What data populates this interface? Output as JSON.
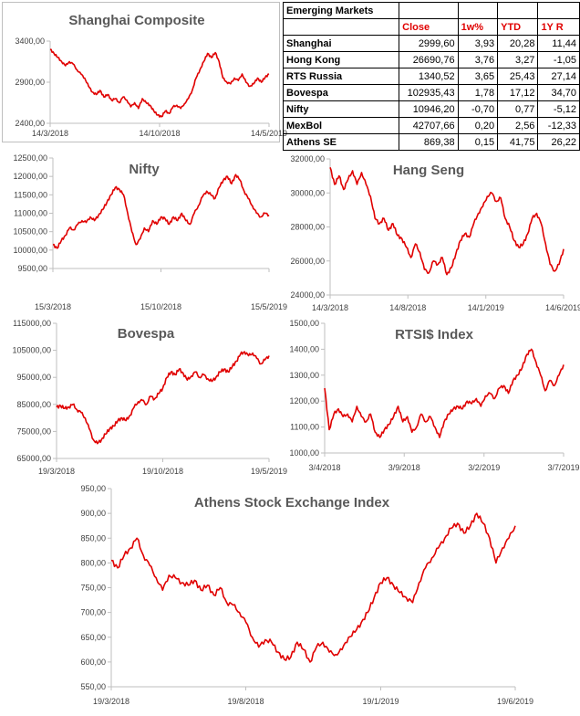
{
  "table": {
    "title": "Emerging Markets",
    "headers": [
      "Close",
      "1w%",
      "YTD",
      "1Y R"
    ],
    "rows": [
      {
        "name": "Shanghai",
        "close": "2999,60",
        "w1": "3,93",
        "ytd": "20,28",
        "y1": "11,44"
      },
      {
        "name": "Hong Kong",
        "close": "26690,76",
        "w1": "3,76",
        "ytd": "3,27",
        "y1": "-1,05"
      },
      {
        "name": "RTS Russia",
        "close": "1340,52",
        "w1": "3,65",
        "ytd": "25,43",
        "y1": "27,14"
      },
      {
        "name": "Bovespa",
        "close": "102935,43",
        "w1": "1,78",
        "ytd": "17,12",
        "y1": "34,70"
      },
      {
        "name": "Nifty",
        "close": "10946,20",
        "w1": "-0,70",
        "ytd": "0,77",
        "y1": "-5,12"
      },
      {
        "name": "MexBol",
        "close": "42707,66",
        "w1": "0,20",
        "ytd": "2,56",
        "y1": "-12,33"
      },
      {
        "name": "Athens SE",
        "close": "869,38",
        "w1": "0,15",
        "ytd": "41,75",
        "y1": "26,22"
      }
    ]
  },
  "colors": {
    "line": "#e00000",
    "axis": "#bfbfbf",
    "text": "#404040",
    "title": "#595959"
  },
  "chart_data": [
    {
      "id": "shanghai",
      "type": "line",
      "title": "Shanghai Composite",
      "ylim": [
        2400,
        3400
      ],
      "yticks": [
        "3400,00",
        "2900,00",
        "2400,00"
      ],
      "ytick_values": [
        3400,
        2900,
        2400
      ],
      "xticks": [
        "14/3/2018",
        "14/10/2018",
        "14/5/2019"
      ],
      "xtick_pos": [
        0.0,
        0.5,
        1.0
      ],
      "series": [
        {
          "values": [
            3300,
            3250,
            3200,
            3150,
            3100,
            3150,
            3120,
            3050,
            3000,
            2950,
            2850,
            2780,
            2750,
            2800,
            2720,
            2750,
            2680,
            2700,
            2650,
            2720,
            2680,
            2600,
            2650,
            2580,
            2700,
            2650,
            2620,
            2550,
            2500,
            2480,
            2550,
            2520,
            2600,
            2620,
            2580,
            2640,
            2700,
            2800,
            2950,
            3050,
            3150,
            3250,
            3200,
            3260,
            3150,
            2950,
            2900,
            2880,
            2950,
            2920,
            3000,
            2900,
            2850,
            2880,
            2950,
            2900,
            2960,
            3000
          ]
        }
      ]
    },
    {
      "id": "nifty",
      "type": "line",
      "title": "Nifty",
      "ylim": [
        9500,
        12500
      ],
      "yticks": [
        "12500,00",
        "12000,00",
        "11500,00",
        "11000,00",
        "10500,00",
        "10000,00",
        "9500,00"
      ],
      "ytick_values": [
        12500,
        12000,
        11500,
        11000,
        10500,
        10000,
        9500
      ],
      "xticks": [
        "15/3/2018",
        "15/10/2018",
        "15/5/2019"
      ],
      "xtick_pos": [
        0.0,
        0.5,
        1.0
      ],
      "series": [
        {
          "values": [
            10150,
            10050,
            10250,
            10400,
            10600,
            10550,
            10700,
            10800,
            10750,
            10900,
            10800,
            10950,
            11100,
            11300,
            11500,
            11700,
            11650,
            11500,
            11000,
            10500,
            10150,
            10300,
            10600,
            10500,
            10800,
            10700,
            10900,
            10850,
            10700,
            10900,
            10800,
            11000,
            10800,
            10700,
            11000,
            11200,
            11450,
            11600,
            11500,
            11400,
            11700,
            11900,
            12000,
            11800,
            12050,
            11900,
            11600,
            11400,
            11200,
            11000,
            10900,
            11000,
            10950
          ]
        }
      ]
    },
    {
      "id": "hangseng",
      "type": "line",
      "title": "Hang Seng",
      "ylim": [
        24000,
        32000
      ],
      "yticks": [
        "32000,00",
        "30000,00",
        "28000,00",
        "26000,00",
        "24000,00"
      ],
      "ytick_values": [
        32000,
        30000,
        28000,
        26000,
        24000
      ],
      "xticks": [
        "14/3/2018",
        "14/8/2018",
        "14/1/2019",
        "14/6/2019"
      ],
      "xtick_pos": [
        0.0,
        0.333,
        0.667,
        1.0
      ],
      "series": [
        {
          "values": [
            31500,
            30500,
            31000,
            30200,
            30800,
            31300,
            30500,
            31200,
            30500,
            29800,
            28500,
            28200,
            28500,
            27800,
            28200,
            27500,
            27300,
            26800,
            26200,
            27000,
            26500,
            25500,
            25300,
            26000,
            25800,
            26200,
            25200,
            25600,
            26400,
            27200,
            27600,
            27400,
            28200,
            28800,
            29200,
            29800,
            30000,
            29500,
            29700,
            28500,
            28000,
            27200,
            26800,
            27000,
            27600,
            28500,
            28800,
            28200,
            27000,
            25800,
            25400,
            25800,
            26700
          ]
        }
      ]
    },
    {
      "id": "bovespa",
      "type": "line",
      "title": "Bovespa",
      "ylim": [
        65000,
        115000
      ],
      "yticks": [
        "115000,00",
        "105000,00",
        "95000,00",
        "85000,00",
        "75000,00",
        "65000,00"
      ],
      "ytick_values": [
        115000,
        105000,
        95000,
        85000,
        75000,
        65000
      ],
      "xticks": [
        "19/3/2018",
        "19/10/2018",
        "19/5/2019"
      ],
      "xtick_pos": [
        0.0,
        0.5,
        1.0
      ],
      "series": [
        {
          "values": [
            84000,
            84500,
            83500,
            84000,
            85000,
            83000,
            82000,
            80000,
            76000,
            72000,
            70500,
            72000,
            74000,
            76000,
            77000,
            79000,
            80000,
            79000,
            81000,
            84000,
            86000,
            86500,
            85000,
            88000,
            87000,
            89000,
            91000,
            95000,
            97000,
            96000,
            98000,
            96500,
            94000,
            95500,
            97000,
            95000,
            96000,
            94500,
            93500,
            95000,
            97000,
            98000,
            97000,
            99000,
            101000,
            103500,
            104500,
            103000,
            104000,
            102000,
            100000,
            101500,
            103000
          ]
        }
      ]
    },
    {
      "id": "rtsi",
      "type": "line",
      "title": "RTSI$ Index",
      "ylim": [
        1000,
        1500
      ],
      "yticks": [
        "1500,00",
        "1400,00",
        "1300,00",
        "1200,00",
        "1100,00",
        "1000,00"
      ],
      "ytick_values": [
        1500,
        1400,
        1300,
        1200,
        1100,
        1000
      ],
      "xticks": [
        "3/4/2018",
        "3/9/2018",
        "3/2/2019",
        "3/7/2019"
      ],
      "xtick_pos": [
        0.0,
        0.333,
        0.667,
        1.0
      ],
      "series": [
        {
          "values": [
            1250,
            1090,
            1150,
            1170,
            1140,
            1150,
            1120,
            1180,
            1140,
            1120,
            1150,
            1080,
            1060,
            1090,
            1110,
            1140,
            1180,
            1120,
            1140,
            1080,
            1100,
            1150,
            1120,
            1140,
            1100,
            1060,
            1120,
            1150,
            1170,
            1180,
            1170,
            1200,
            1190,
            1210,
            1180,
            1220,
            1230,
            1210,
            1250,
            1260,
            1230,
            1280,
            1300,
            1330,
            1380,
            1400,
            1350,
            1300,
            1240,
            1280,
            1260,
            1300,
            1340
          ]
        }
      ]
    },
    {
      "id": "athens",
      "type": "line",
      "title": "Athens Stock Exchange Index",
      "ylim": [
        550,
        950
      ],
      "yticks": [
        "950,00",
        "900,00",
        "850,00",
        "800,00",
        "750,00",
        "700,00",
        "650,00",
        "600,00",
        "550,00"
      ],
      "ytick_values": [
        950,
        900,
        850,
        800,
        750,
        700,
        650,
        600,
        550
      ],
      "xticks": [
        "19/3/2018",
        "19/8/2018",
        "19/1/2019",
        "19/6/2019"
      ],
      "xtick_pos": [
        0.0,
        0.333,
        0.667,
        1.0
      ],
      "series": [
        {
          "values": [
            805,
            790,
            815,
            830,
            850,
            815,
            795,
            770,
            745,
            775,
            770,
            760,
            755,
            765,
            745,
            755,
            735,
            750,
            720,
            715,
            700,
            680,
            650,
            630,
            645,
            640,
            620,
            605,
            610,
            640,
            625,
            600,
            630,
            640,
            620,
            615,
            625,
            650,
            660,
            680,
            700,
            730,
            760,
            770,
            755,
            740,
            730,
            720,
            760,
            790,
            810,
            830,
            850,
            870,
            880,
            860,
            875,
            900,
            880,
            850,
            800,
            830,
            850,
            875
          ]
        }
      ]
    }
  ]
}
